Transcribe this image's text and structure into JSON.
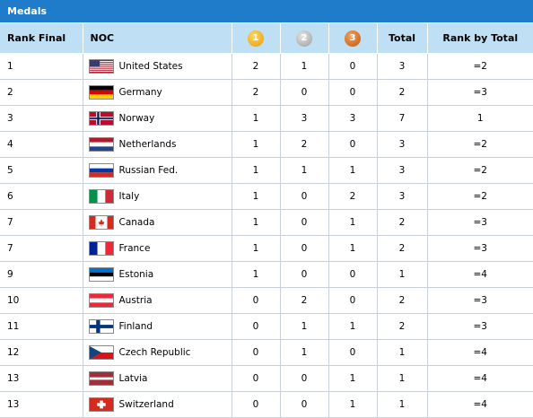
{
  "panel": {
    "title": "Medals"
  },
  "headers": {
    "rank_final": "Rank Final",
    "noc": "NOC",
    "gold": "1",
    "silver": "2",
    "bronze": "3",
    "total": "Total",
    "rank_by_total": "Rank by Total"
  },
  "colors": {
    "header_bar": "#1f7ccb",
    "column_header_bg": "#bfe0f4"
  },
  "rows": [
    {
      "rank": "1",
      "noc": "United States",
      "flag": "usa-flag",
      "gold": "2",
      "silver": "1",
      "bronze": "0",
      "total": "3",
      "rank_total": "=2"
    },
    {
      "rank": "2",
      "noc": "Germany",
      "flag": "germany-flag",
      "gold": "2",
      "silver": "0",
      "bronze": "0",
      "total": "2",
      "rank_total": "=3"
    },
    {
      "rank": "3",
      "noc": "Norway",
      "flag": "norway-flag",
      "gold": "1",
      "silver": "3",
      "bronze": "3",
      "total": "7",
      "rank_total": "1"
    },
    {
      "rank": "4",
      "noc": "Netherlands",
      "flag": "netherlands-flag",
      "gold": "1",
      "silver": "2",
      "bronze": "0",
      "total": "3",
      "rank_total": "=2"
    },
    {
      "rank": "5",
      "noc": "Russian Fed.",
      "flag": "russia-flag",
      "gold": "1",
      "silver": "1",
      "bronze": "1",
      "total": "3",
      "rank_total": "=2"
    },
    {
      "rank": "6",
      "noc": "Italy",
      "flag": "italy-flag",
      "gold": "1",
      "silver": "0",
      "bronze": "2",
      "total": "3",
      "rank_total": "=2"
    },
    {
      "rank": "7",
      "noc": "Canada",
      "flag": "canada-flag",
      "gold": "1",
      "silver": "0",
      "bronze": "1",
      "total": "2",
      "rank_total": "=3"
    },
    {
      "rank": "7",
      "noc": "France",
      "flag": "france-flag",
      "gold": "1",
      "silver": "0",
      "bronze": "1",
      "total": "2",
      "rank_total": "=3"
    },
    {
      "rank": "9",
      "noc": "Estonia",
      "flag": "estonia-flag",
      "gold": "1",
      "silver": "0",
      "bronze": "0",
      "total": "1",
      "rank_total": "=4"
    },
    {
      "rank": "10",
      "noc": "Austria",
      "flag": "austria-flag",
      "gold": "0",
      "silver": "2",
      "bronze": "0",
      "total": "2",
      "rank_total": "=3"
    },
    {
      "rank": "11",
      "noc": "Finland",
      "flag": "finland-flag",
      "gold": "0",
      "silver": "1",
      "bronze": "1",
      "total": "2",
      "rank_total": "=3"
    },
    {
      "rank": "12",
      "noc": "Czech Republic",
      "flag": "czech-flag",
      "gold": "0",
      "silver": "1",
      "bronze": "0",
      "total": "1",
      "rank_total": "=4"
    },
    {
      "rank": "13",
      "noc": "Latvia",
      "flag": "latvia-flag",
      "gold": "0",
      "silver": "0",
      "bronze": "1",
      "total": "1",
      "rank_total": "=4"
    },
    {
      "rank": "13",
      "noc": "Switzerland",
      "flag": "switzerland-flag",
      "gold": "0",
      "silver": "0",
      "bronze": "1",
      "total": "1",
      "rank_total": "=4"
    }
  ]
}
